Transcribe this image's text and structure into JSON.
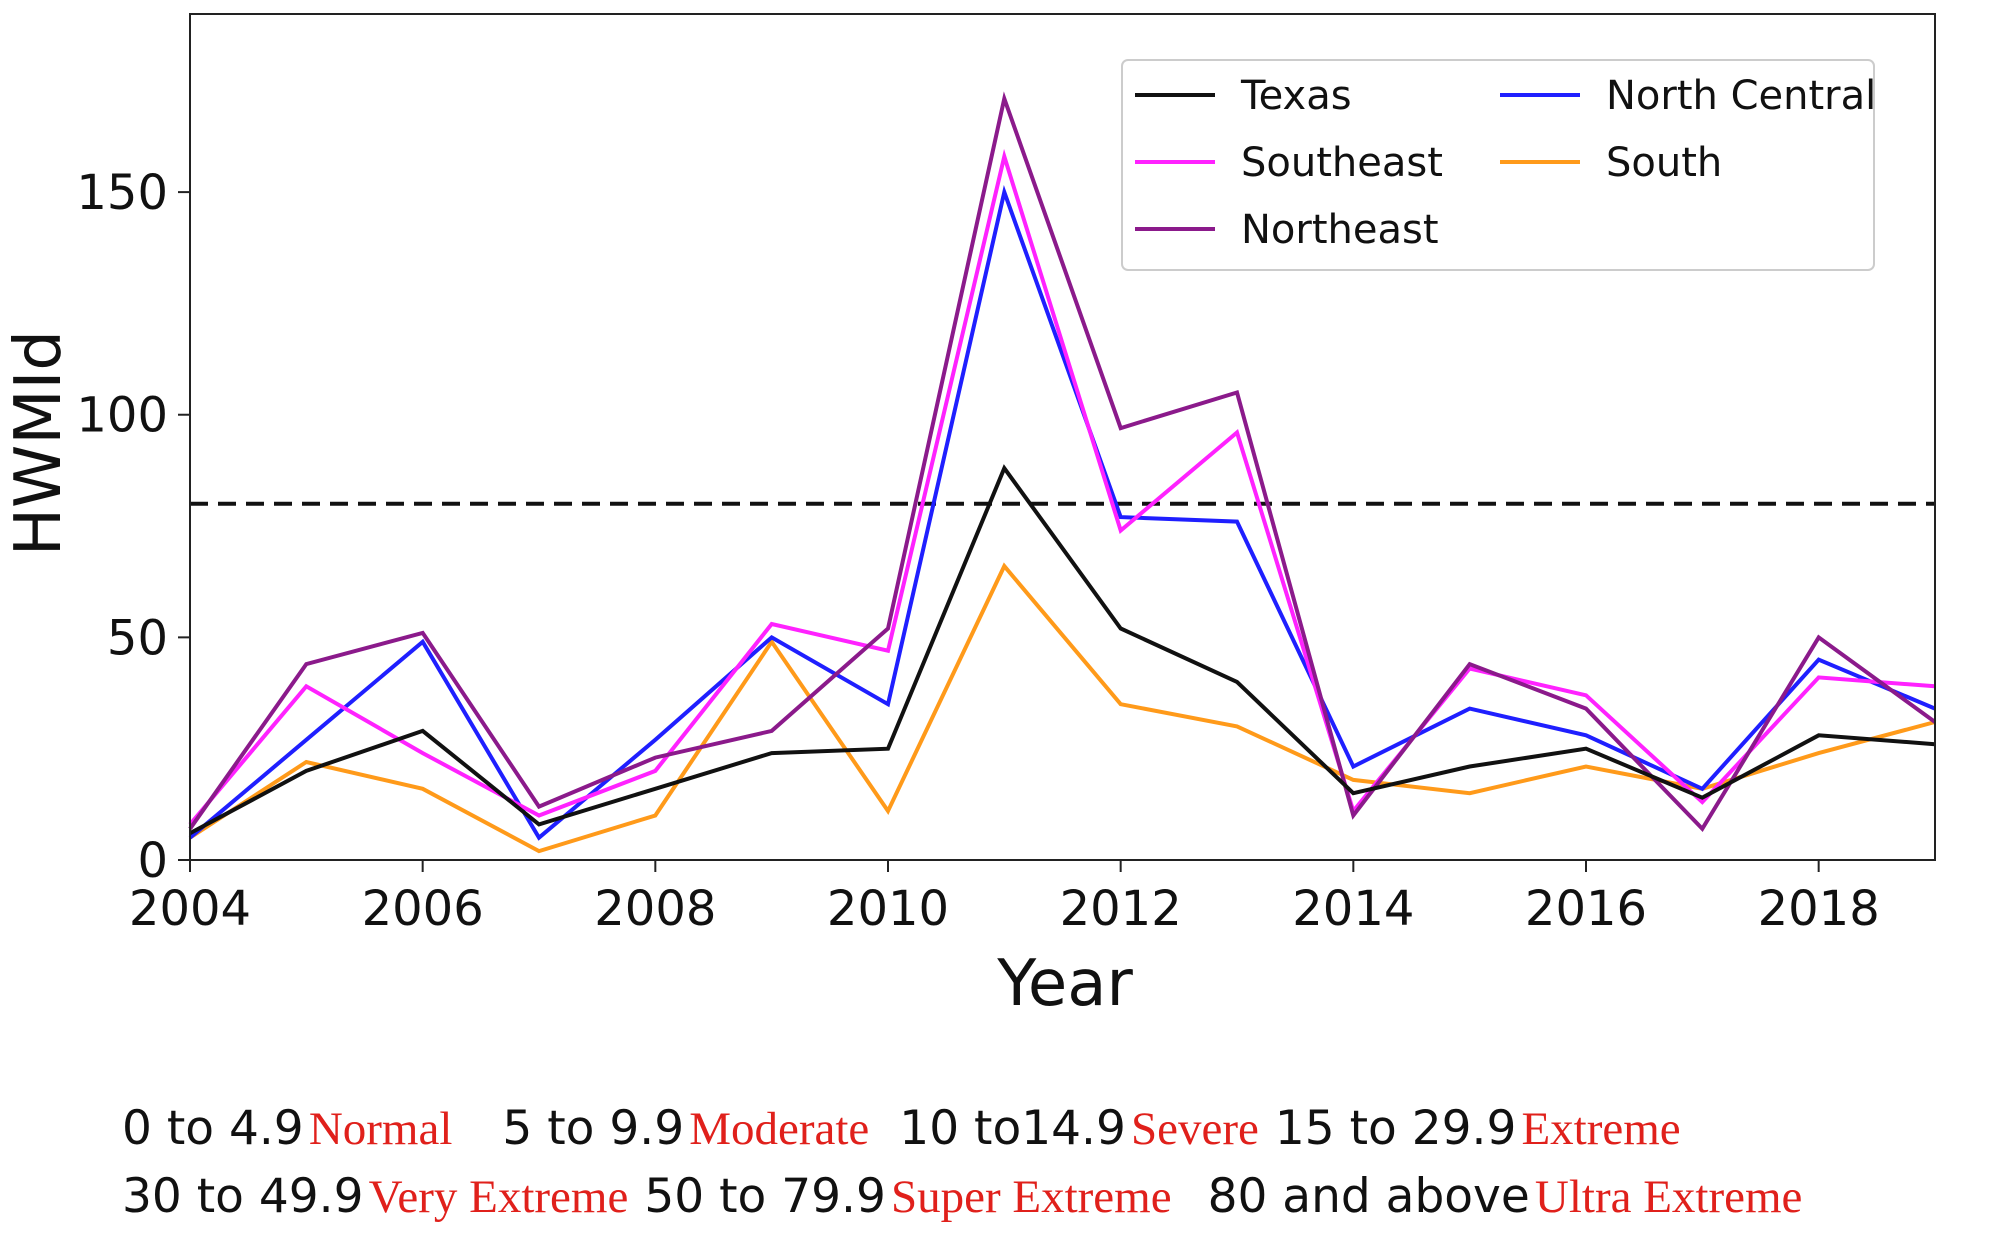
{
  "chart_data": {
    "type": "line",
    "title": "",
    "xlabel": "Year",
    "ylabel": "HWMId",
    "xlim": [
      2004,
      2019
    ],
    "ylim": [
      0,
      190
    ],
    "xticks": [
      "2004",
      "2006",
      "2008",
      "2010",
      "2012",
      "2014",
      "2016",
      "2018"
    ],
    "xtick_values": [
      2004,
      2006,
      2008,
      2010,
      2012,
      2014,
      2016,
      2018
    ],
    "yticks": [
      "0",
      "50",
      "100",
      "150"
    ],
    "ytick_values": [
      0,
      50,
      100,
      150
    ],
    "x": [
      2004,
      2005,
      2006,
      2007,
      2008,
      2009,
      2010,
      2011,
      2012,
      2013,
      2014,
      2015,
      2016,
      2017,
      2018,
      2019
    ],
    "threshold": {
      "value": 80,
      "style": "dashed",
      "color": "#111111"
    },
    "legend_position": "top-right",
    "series": [
      {
        "name": "Texas",
        "color": "#111111",
        "values": [
          6,
          20,
          29,
          8,
          16,
          24,
          25,
          88,
          52,
          40,
          15,
          21,
          25,
          14,
          28,
          26
        ]
      },
      {
        "name": "Southeast",
        "color": "#ff22ff",
        "values": [
          8,
          39,
          24,
          10,
          20,
          53,
          47,
          158,
          74,
          96,
          11,
          43,
          37,
          13,
          41,
          39
        ]
      },
      {
        "name": "Northeast",
        "color": "#8b1a8b",
        "values": [
          7,
          44,
          51,
          12,
          23,
          29,
          52,
          171,
          97,
          105,
          10,
          44,
          34,
          7,
          50,
          31
        ]
      },
      {
        "name": "North Central",
        "color": "#1f1fff",
        "values": [
          5,
          27,
          49,
          5,
          27,
          50,
          35,
          150,
          77,
          76,
          21,
          34,
          28,
          16,
          45,
          34
        ]
      },
      {
        "name": "South",
        "color": "#ff9a1a",
        "values": [
          5,
          22,
          16,
          2,
          10,
          49,
          11,
          66,
          35,
          30,
          18,
          15,
          21,
          16,
          24,
          31
        ]
      }
    ]
  },
  "scale": {
    "rows": [
      [
        {
          "range": "0 to 4.9",
          "category": "Normal"
        },
        {
          "range": "5 to 9.9",
          "category": "Moderate"
        },
        {
          "range": "10 to14.9",
          "category": "Severe"
        },
        {
          "range": "15 to 29.9",
          "category": "Extreme"
        }
      ],
      [
        {
          "range": "30 to 49.9",
          "category": "Very Extreme"
        },
        {
          "range": "50 to 79.9",
          "category": "Super Extreme"
        },
        {
          "range": "80 and above",
          "category": "Ultra Extreme"
        }
      ]
    ]
  }
}
